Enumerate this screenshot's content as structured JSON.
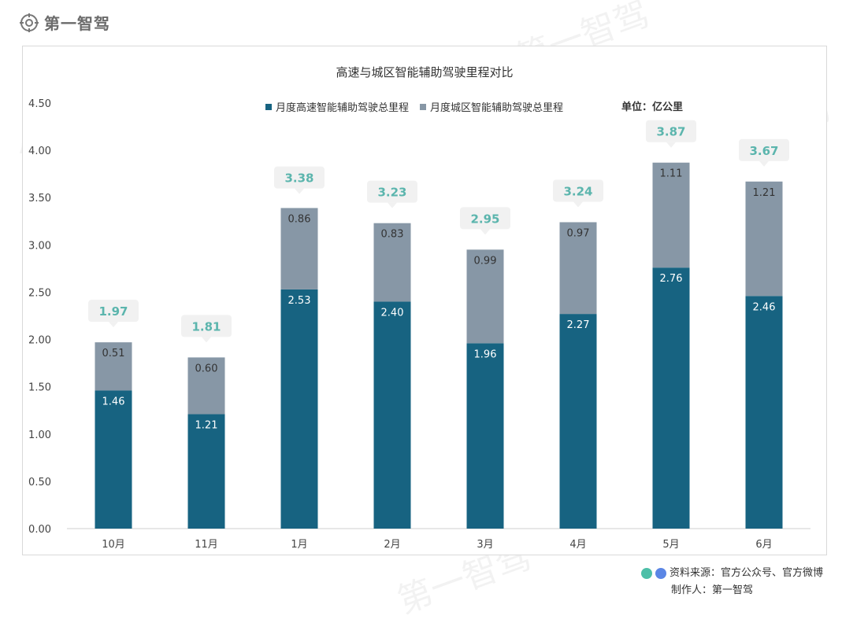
{
  "brand": {
    "name": "第一智驾",
    "icon": "gear-logo-icon"
  },
  "watermark": "第一智驾",
  "chart_data": {
    "type": "bar",
    "stacked": true,
    "title": "高速与城区智能辅助驾驶里程对比",
    "unit": "单位：亿公里",
    "categories": [
      "10月",
      "11月",
      "1月",
      "2月",
      "3月",
      "4月",
      "5月",
      "6月"
    ],
    "series": [
      {
        "name": "月度高速智能辅助驾驶总里程",
        "color": "#176381",
        "values": [
          1.46,
          1.21,
          2.53,
          2.4,
          1.96,
          2.27,
          2.76,
          2.46
        ]
      },
      {
        "name": "月度城区智能辅助驾驶总里程",
        "color": "#8797a6",
        "values": [
          0.51,
          0.6,
          0.86,
          0.83,
          0.99,
          0.97,
          1.11,
          1.21
        ]
      }
    ],
    "totals": [
      1.97,
      1.81,
      3.38,
      3.23,
      2.95,
      3.24,
      3.87,
      3.67
    ],
    "ylim": [
      0,
      4.5
    ],
    "yticks": [
      "0.00",
      "0.50",
      "1.00",
      "1.50",
      "2.00",
      "2.50",
      "3.00",
      "3.50",
      "4.00",
      "4.50"
    ],
    "legend_position": "top",
    "grid": false,
    "total_label_color": "#5bb5ad"
  },
  "footer": {
    "source": "资料来源：官方公众号、官方微博",
    "author": "制作人：第一智驾",
    "dot_colors": [
      "#4dbfa8",
      "#5b86e5"
    ]
  }
}
